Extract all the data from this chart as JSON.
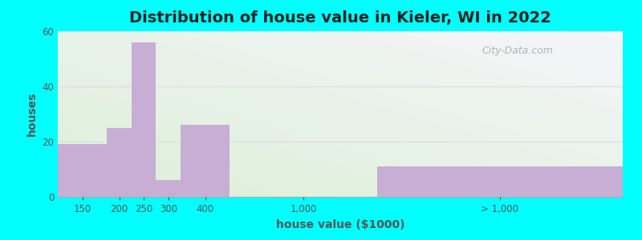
{
  "title": "Distribution of house value in Kieler, WI in 2022",
  "xlabel": "house value ($1000)",
  "ylabel": "houses",
  "bar_color": "#c8aed4",
  "bg_color_topleft": "#e8f5e0",
  "bg_color_topright": "#f5f5f8",
  "outer_bg": "#00ffff",
  "ylim": [
    0,
    60
  ],
  "yticks": [
    0,
    20,
    40,
    60
  ],
  "title_fontsize": 14,
  "axis_label_fontsize": 10,
  "tick_fontsize": 8.5,
  "watermark_text": "City-Data.com",
  "bars": [
    {
      "x_left": 0,
      "x_right": 1.0,
      "height": 19
    },
    {
      "x_left": 1.0,
      "x_right": 1.5,
      "height": 25
    },
    {
      "x_left": 1.5,
      "x_right": 2.0,
      "height": 56
    },
    {
      "x_left": 2.0,
      "x_right": 2.5,
      "height": 6
    },
    {
      "x_left": 2.5,
      "x_right": 3.5,
      "height": 26
    },
    {
      "x_left": 6.5,
      "x_right": 11.5,
      "height": 11
    }
  ],
  "xtick_positions": [
    0.5,
    1.25,
    1.75,
    2.25,
    3.0,
    5.0,
    9.0
  ],
  "xtick_labels": [
    "150",
    "200",
    "250",
    "300",
    "400",
    "1,000",
    "> 1,000"
  ],
  "xlim": [
    0,
    11.5
  ],
  "grid_color": "#dddddd"
}
